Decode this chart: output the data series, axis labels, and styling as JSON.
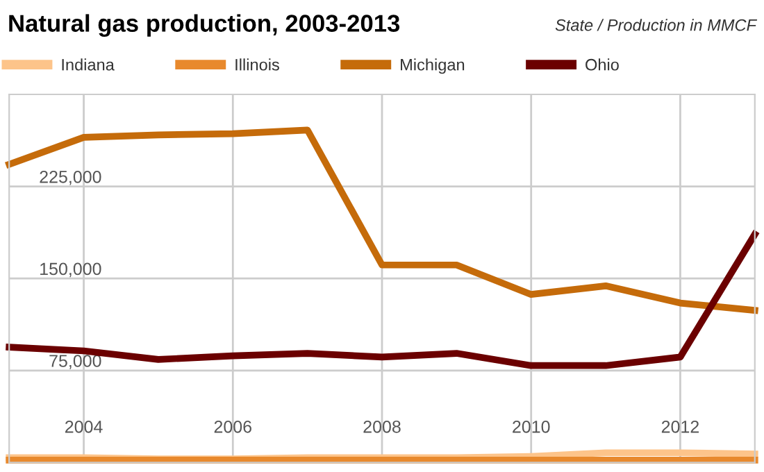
{
  "chart_data": {
    "type": "line",
    "title": "Natural gas production, 2003-2013",
    "annotations": [
      "State / Production in MMCF"
    ],
    "x": [
      2003,
      2004,
      2005,
      2006,
      2007,
      2008,
      2009,
      2010,
      2011,
      2012,
      2013
    ],
    "series": [
      {
        "name": "Indiana",
        "color": "#fdc48a",
        "values": [
          4000,
          4000,
          3000,
          3000,
          4000,
          4000,
          4000,
          5000,
          8000,
          8000,
          7000
        ]
      },
      {
        "name": "Illinois",
        "color": "#e8892d",
        "values": [
          2000,
          2000,
          2000,
          2000,
          2000,
          2000,
          2000,
          2000,
          2000,
          2000,
          2000
        ]
      },
      {
        "name": "Michigan",
        "color": "#c56b0a",
        "values": [
          243000,
          265000,
          267000,
          268000,
          271000,
          161000,
          161000,
          137000,
          144000,
          130000,
          124000
        ]
      },
      {
        "name": "Ohio",
        "color": "#6b0000",
        "values": [
          94000,
          91000,
          84000,
          87000,
          89000,
          86000,
          89000,
          79000,
          79000,
          86000,
          186000
        ]
      }
    ],
    "xlim": [
      2003,
      2013
    ],
    "xticks": [
      2004,
      2006,
      2008,
      2010,
      2012
    ],
    "ylim": [
      0,
      300000
    ],
    "yticks": [
      {
        "value": 75000,
        "label": "75,000"
      },
      {
        "value": 150000,
        "label": "150,000"
      },
      {
        "value": 225000,
        "label": "225,000"
      }
    ],
    "grid": true,
    "legend": "top left",
    "marker": "none",
    "line_style": "solid"
  }
}
